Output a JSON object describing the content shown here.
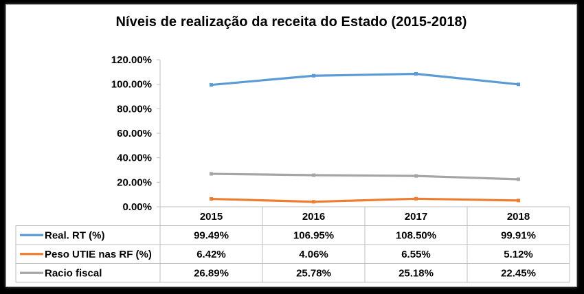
{
  "chart_data": {
    "type": "line",
    "title": "Níveis de realização da receita do Estado (2015-2018)",
    "xlabel": "",
    "ylabel": "",
    "categories": [
      "2015",
      "2016",
      "2017",
      "2018"
    ],
    "ylim": [
      0,
      120
    ],
    "y_ticks": [
      "0.00%",
      "20.00%",
      "40.00%",
      "60.00%",
      "80.00%",
      "100.00%",
      "120.00%"
    ],
    "grid": false,
    "legend_placement": "data-table-left",
    "series": [
      {
        "name": "Real. RT (%)",
        "color": "#5B9BD5",
        "values": [
          99.49,
          106.95,
          108.5,
          99.91
        ],
        "labels": [
          "99.49%",
          "106.95%",
          "108.50%",
          "99.91%"
        ]
      },
      {
        "name": "Peso UTIE nas RF (%)",
        "color": "#ED7D31",
        "values": [
          6.42,
          4.06,
          6.55,
          5.12
        ],
        "labels": [
          "6.42%",
          "4.06%",
          "6.55%",
          "5.12%"
        ]
      },
      {
        "name": "Racio fiscal",
        "color": "#A5A5A5",
        "values": [
          26.89,
          25.78,
          25.18,
          22.45
        ],
        "labels": [
          "26.89%",
          "25.78%",
          "25.18%",
          "22.45%"
        ]
      }
    ]
  }
}
